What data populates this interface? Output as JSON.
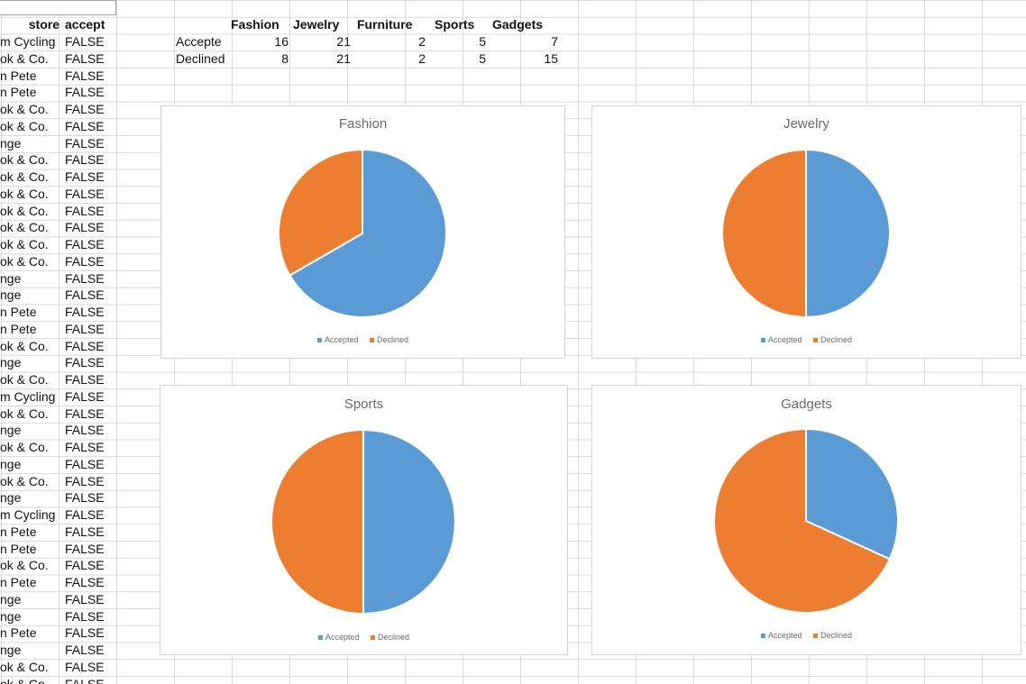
{
  "columns": {
    "store": "store",
    "accept": "accept"
  },
  "rows": [
    {
      "store": "m Cycling",
      "accept": "FALSE"
    },
    {
      "store": "ok & Co.",
      "accept": "FALSE"
    },
    {
      "store": "n Pete",
      "accept": "FALSE"
    },
    {
      "store": "n Pete",
      "accept": "FALSE"
    },
    {
      "store": "ok & Co.",
      "accept": "FALSE"
    },
    {
      "store": "ok & Co.",
      "accept": "FALSE"
    },
    {
      "store": "nge",
      "accept": "FALSE"
    },
    {
      "store": "ok & Co.",
      "accept": "FALSE"
    },
    {
      "store": "ok & Co.",
      "accept": "FALSE"
    },
    {
      "store": "ok & Co.",
      "accept": "FALSE"
    },
    {
      "store": "ok & Co.",
      "accept": "FALSE"
    },
    {
      "store": "ok & Co.",
      "accept": "FALSE"
    },
    {
      "store": "ok & Co.",
      "accept": "FALSE"
    },
    {
      "store": "ok & Co.",
      "accept": "FALSE"
    },
    {
      "store": "nge",
      "accept": "FALSE"
    },
    {
      "store": "nge",
      "accept": "FALSE"
    },
    {
      "store": "n Pete",
      "accept": "FALSE"
    },
    {
      "store": "n Pete",
      "accept": "FALSE"
    },
    {
      "store": "ok & Co.",
      "accept": "FALSE"
    },
    {
      "store": "nge",
      "accept": "FALSE"
    },
    {
      "store": "ok & Co.",
      "accept": "FALSE"
    },
    {
      "store": "m Cycling",
      "accept": "FALSE"
    },
    {
      "store": "ok & Co.",
      "accept": "FALSE"
    },
    {
      "store": "nge",
      "accept": "FALSE"
    },
    {
      "store": "ok & Co.",
      "accept": "FALSE"
    },
    {
      "store": "nge",
      "accept": "FALSE"
    },
    {
      "store": "ok & Co.",
      "accept": "FALSE"
    },
    {
      "store": "nge",
      "accept": "FALSE"
    },
    {
      "store": "m Cycling",
      "accept": "FALSE"
    },
    {
      "store": "n Pete",
      "accept": "FALSE"
    },
    {
      "store": "n Pete",
      "accept": "FALSE"
    },
    {
      "store": "ok & Co.",
      "accept": "FALSE"
    },
    {
      "store": "n Pete",
      "accept": "FALSE"
    },
    {
      "store": "nge",
      "accept": "FALSE"
    },
    {
      "store": "nge",
      "accept": "FALSE"
    },
    {
      "store": "n Pete",
      "accept": "FALSE"
    },
    {
      "store": "nge",
      "accept": "FALSE"
    },
    {
      "store": "ok & Co.",
      "accept": "FALSE"
    },
    {
      "store": "ok & Co.",
      "accept": "FALSE"
    }
  ],
  "summary": {
    "categories": [
      "Fashion",
      "Jewelry",
      "Furniture",
      "Sports",
      "Gadgets"
    ],
    "rows": [
      {
        "label": "Accepte",
        "values": [
          16,
          21,
          2,
          5,
          7
        ]
      },
      {
        "label": "Declined",
        "values": [
          8,
          21,
          2,
          5,
          15
        ]
      }
    ]
  },
  "colors": {
    "accepted": "#5b9bd5",
    "declined": "#ed7d31"
  },
  "chart_data": [
    {
      "type": "pie",
      "title": "Fashion",
      "labels": [
        "Accepted",
        "Declined"
      ],
      "values": [
        16,
        8
      ]
    },
    {
      "type": "pie",
      "title": "Jewelry",
      "labels": [
        "Accepted",
        "Declined"
      ],
      "values": [
        21,
        21
      ]
    },
    {
      "type": "pie",
      "title": "Sports",
      "labels": [
        "Accepted",
        "Declined"
      ],
      "values": [
        5,
        5
      ]
    },
    {
      "type": "pie",
      "title": "Gadgets",
      "labels": [
        "Accepted",
        "Declined"
      ],
      "values": [
        7,
        15
      ]
    }
  ]
}
